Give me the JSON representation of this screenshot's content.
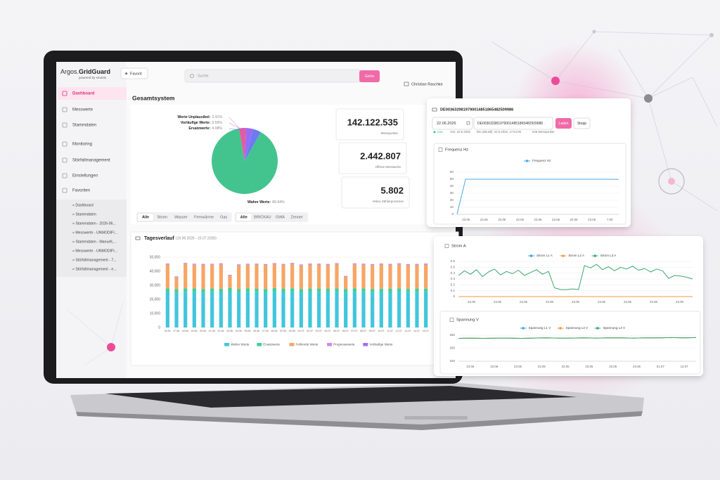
{
  "sidebar": {
    "brand": "Argos.",
    "brand_bold": "GridGuard",
    "powered": "powered by smartis",
    "menu": [
      "Dashboard",
      "Messwerte",
      "Stammdaten",
      "Monitoring",
      "Störfallmanagement",
      "Einstellungen",
      "Favoriten"
    ],
    "favorites": [
      "» Dashboard",
      "» Stammdaten",
      "» Stammdaten - 2026-06...",
      "» Messwerte - UNMODIFI...",
      "» Stammdaten - Manuell,...",
      "» Messwerte - UNMODIFI...",
      "» Störfallmanagement - 7...",
      "» Störfallmanagement - e..."
    ]
  },
  "topbar": {
    "favorite": "Favorit",
    "search": "Suche",
    "button": "Gehe",
    "user": "Christian Raschke"
  },
  "overview": {
    "title": "Gesamtsystem",
    "pie": {
      "type": "pie",
      "categories": [
        "Werte Unplausibel:",
        "Vorläufige Werte:",
        "Ersatzwerte:",
        "Wahre Werte:"
      ],
      "values": [
        3.41,
        3.55,
        4.08,
        89.94
      ],
      "value_labels": [
        "3.41%",
        "3.55%",
        "4.08%",
        "89.94%"
      ],
      "colors": [
        "#e85aa0",
        "#9b6cf0",
        "#6a7cf0",
        "#43c48e"
      ]
    },
    "kpis": [
      {
        "value": "142.122.535",
        "label": "Messpunkte"
      },
      {
        "value": "2.442.807",
        "label": "Offene Messwerte"
      },
      {
        "value": "5.802",
        "label": "Aktive Zählerprozesse"
      }
    ],
    "filters_medium": [
      "Alle",
      "Strom",
      "Wasser",
      "Fernwärme",
      "Gas"
    ],
    "filters_vendor": [
      "Alle",
      "BRICKAU",
      "GWA",
      "Zenner"
    ]
  },
  "daily": {
    "title": "Tagesverlauf",
    "range": "(16.06.2026 - 15.07.2026)",
    "chart": {
      "type": "bar",
      "stacked": true,
      "categories": [
        "16.06.",
        "17.06.",
        "18.06.",
        "19.06.",
        "20.06.",
        "21.06.",
        "22.06.",
        "23.06.",
        "24.06.",
        "25.06.",
        "26.06.",
        "27.06.",
        "28.06.",
        "29.06.",
        "30.06.",
        "01.07.",
        "02.07.",
        "03.07.",
        "04.07.",
        "05.07.",
        "06.07.",
        "07.07.",
        "08.07.",
        "09.07.",
        "10.07.",
        "11.07.",
        "12.07.",
        "13.07.",
        "14.07.",
        "15.07."
      ],
      "series": [
        {
          "name": "Wahre Werte",
          "color": "#41c6dc",
          "values": [
            25200,
            24800,
            25400,
            25100,
            24900,
            25300,
            25000,
            25500,
            24700,
            25200,
            25100,
            24800,
            25400,
            25000,
            25300,
            24900,
            25200,
            25100,
            25000,
            25400,
            24800,
            25300,
            25100,
            24900,
            25200,
            25000,
            25300,
            24900,
            25100,
            25200
          ]
        },
        {
          "name": "Ersatzwerte",
          "color": "#3fcf9a",
          "values": [
            2600,
            2400,
            2500,
            2700,
            2500,
            2400,
            2600,
            2500,
            2500,
            2600,
            2400,
            2500,
            2700,
            2500,
            2600,
            2400,
            2500,
            2600,
            2500,
            2400,
            2600,
            2500,
            2700,
            2500,
            2400,
            2600,
            2500,
            2500,
            2600,
            2400
          ]
        },
        {
          "name": "Fehlende Werte",
          "color": "#f7a564",
          "values": [
            17000,
            8500,
            17200,
            16800,
            17100,
            16900,
            17300,
            8800,
            17000,
            16800,
            17200,
            17100,
            16900,
            17000,
            17300,
            16800,
            17100,
            17000,
            16900,
            17200,
            8600,
            17100,
            16800,
            17000,
            17200,
            16900,
            17100,
            17000,
            16800,
            17200
          ]
        },
        {
          "name": "Prognosewerte",
          "color": "#c78af0",
          "values": [
            400,
            350,
            420,
            380,
            400,
            360,
            410,
            390,
            400,
            370,
            420,
            380,
            400,
            390,
            410,
            360,
            400,
            380,
            420,
            390,
            370,
            400,
            410,
            380,
            400,
            390,
            420,
            370,
            400,
            380
          ]
        },
        {
          "name": "Vorläufige Werte",
          "color": "#a56df0",
          "values": [
            300,
            280,
            320,
            300,
            290,
            310,
            300,
            280,
            300,
            320,
            290,
            300,
            310,
            280,
            300,
            320,
            290,
            300,
            310,
            300,
            280,
            300,
            320,
            290,
            300,
            310,
            300,
            280,
            300,
            320
          ]
        }
      ],
      "ylim": [
        0,
        50000
      ],
      "yticks": [
        {
          "value": 0,
          "label": "0"
        },
        {
          "value": 10000,
          "label": "10,000"
        },
        {
          "value": 20000,
          "label": "20,000"
        },
        {
          "value": 30000,
          "label": "30,000"
        },
        {
          "value": 40000,
          "label": "40,000"
        },
        {
          "value": 50000,
          "label": "50,000"
        }
      ],
      "grid": true
    }
  },
  "card_frequency": {
    "meter_id": "DE0036329819790014851865482509986",
    "date": "22.06.2026",
    "meter_input": "DE0036329819790014851865482509986",
    "load": "Laden",
    "stop": "Stopp",
    "status": {
      "live": "Live",
      "from": "Von: 22.6.2026",
      "to": "Bis (aktuell): 22.6.2026, 17:54:00",
      "points": "526 Messpunkte"
    },
    "chart": {
      "type": "line",
      "title": "Frequenz Hz",
      "xtick_labels": [
        "23.06",
        "23.06",
        "23.06",
        "23.06",
        "23.06",
        "23.06",
        "23.06",
        "23.06",
        "7.00"
      ],
      "series": [
        {
          "name": "Frequenz Hz",
          "color": "#4aa8e8",
          "values": [
            0,
            50,
            50,
            50,
            50,
            50,
            50,
            50,
            50,
            50,
            50,
            50,
            50,
            50,
            50,
            50,
            50,
            50,
            50,
            49.8
          ]
        }
      ],
      "ylim": [
        0,
        60
      ],
      "yticks": [
        0,
        10,
        20,
        30,
        40,
        50,
        60
      ],
      "grid": true
    }
  },
  "card_power": {
    "current": {
      "type": "line",
      "title": "Strom A",
      "xtick_labels": [
        "22.06",
        "23.06",
        "23.06",
        "23.06",
        "23.06",
        "23.06",
        "23.06",
        "23.06",
        "23.06"
      ],
      "series": [
        {
          "name": "Strom L1 A",
          "color": "#3ea3e8",
          "values": [
            0,
            0,
            0,
            0,
            0,
            0,
            0,
            0,
            0,
            0,
            0,
            0,
            0,
            0,
            0,
            0,
            0,
            0,
            0,
            0,
            0,
            0,
            0,
            0,
            0,
            0,
            0,
            0,
            0,
            0,
            0,
            0,
            0,
            0,
            0,
            0,
            0,
            0,
            0,
            0
          ]
        },
        {
          "name": "Strom L2 A",
          "color": "#f39a3c",
          "values": [
            0,
            0,
            0,
            0,
            0,
            0,
            0,
            0,
            0,
            0,
            0,
            0,
            0,
            0,
            0,
            0,
            0,
            0,
            0,
            0,
            0,
            0,
            0,
            0,
            0,
            0,
            0,
            0,
            0,
            0,
            0,
            0,
            0,
            0,
            0,
            0,
            0,
            0,
            0,
            0
          ]
        },
        {
          "name": "Strom L3 A",
          "color": "#3aa86b",
          "values": [
            0.36,
            0.44,
            0.38,
            0.46,
            0.34,
            0.42,
            0.47,
            0.37,
            0.43,
            0.39,
            0.45,
            0.36,
            0.41,
            0.46,
            0.38,
            0.43,
            0.15,
            0.12,
            0.12,
            0.13,
            0.12,
            0.53,
            0.49,
            0.55,
            0.46,
            0.51,
            0.44,
            0.5,
            0.47,
            0.52,
            0.45,
            0.48,
            0.42,
            0.47,
            0.44,
            0.31,
            0.36,
            0.35,
            0.33,
            0.3
          ]
        }
      ],
      "ylim": [
        0,
        0.6
      ],
      "yticks": [
        0,
        0.1,
        0.2,
        0.3,
        0.4,
        0.5,
        0.6
      ],
      "grid": true
    },
    "voltage": {
      "type": "line",
      "title": "Spannung V",
      "xtick_labels": [
        "23.06",
        "23.06",
        "23.06",
        "23.06",
        "23.06",
        "23.06",
        "23.06",
        "23.06",
        "01.07",
        "13.07"
      ],
      "series": [
        {
          "name": "Spannung L1 V",
          "color": "#3ea3e8",
          "values": [
            238,
            239,
            238,
            239,
            239,
            238,
            239,
            240,
            239,
            239,
            240,
            239,
            240,
            240,
            239,
            240,
            240,
            241,
            240,
            241
          ]
        },
        {
          "name": "Spannung L2 V",
          "color": "#f39a3c",
          "values": [
            238,
            239,
            238,
            239,
            239,
            238,
            239,
            240,
            239,
            239,
            240,
            239,
            240,
            240,
            239,
            240,
            240,
            241,
            240,
            241
          ]
        },
        {
          "name": "Spannung L3 V",
          "color": "#3aa86b",
          "values": [
            238,
            239,
            238,
            239,
            239,
            238,
            239,
            240,
            239,
            239,
            240,
            239,
            240,
            240,
            239,
            240,
            240,
            241,
            240,
            241
          ]
        }
      ],
      "ylim": [
        150,
        250
      ],
      "yticks": [
        150,
        200,
        250
      ],
      "grid": true
    }
  }
}
